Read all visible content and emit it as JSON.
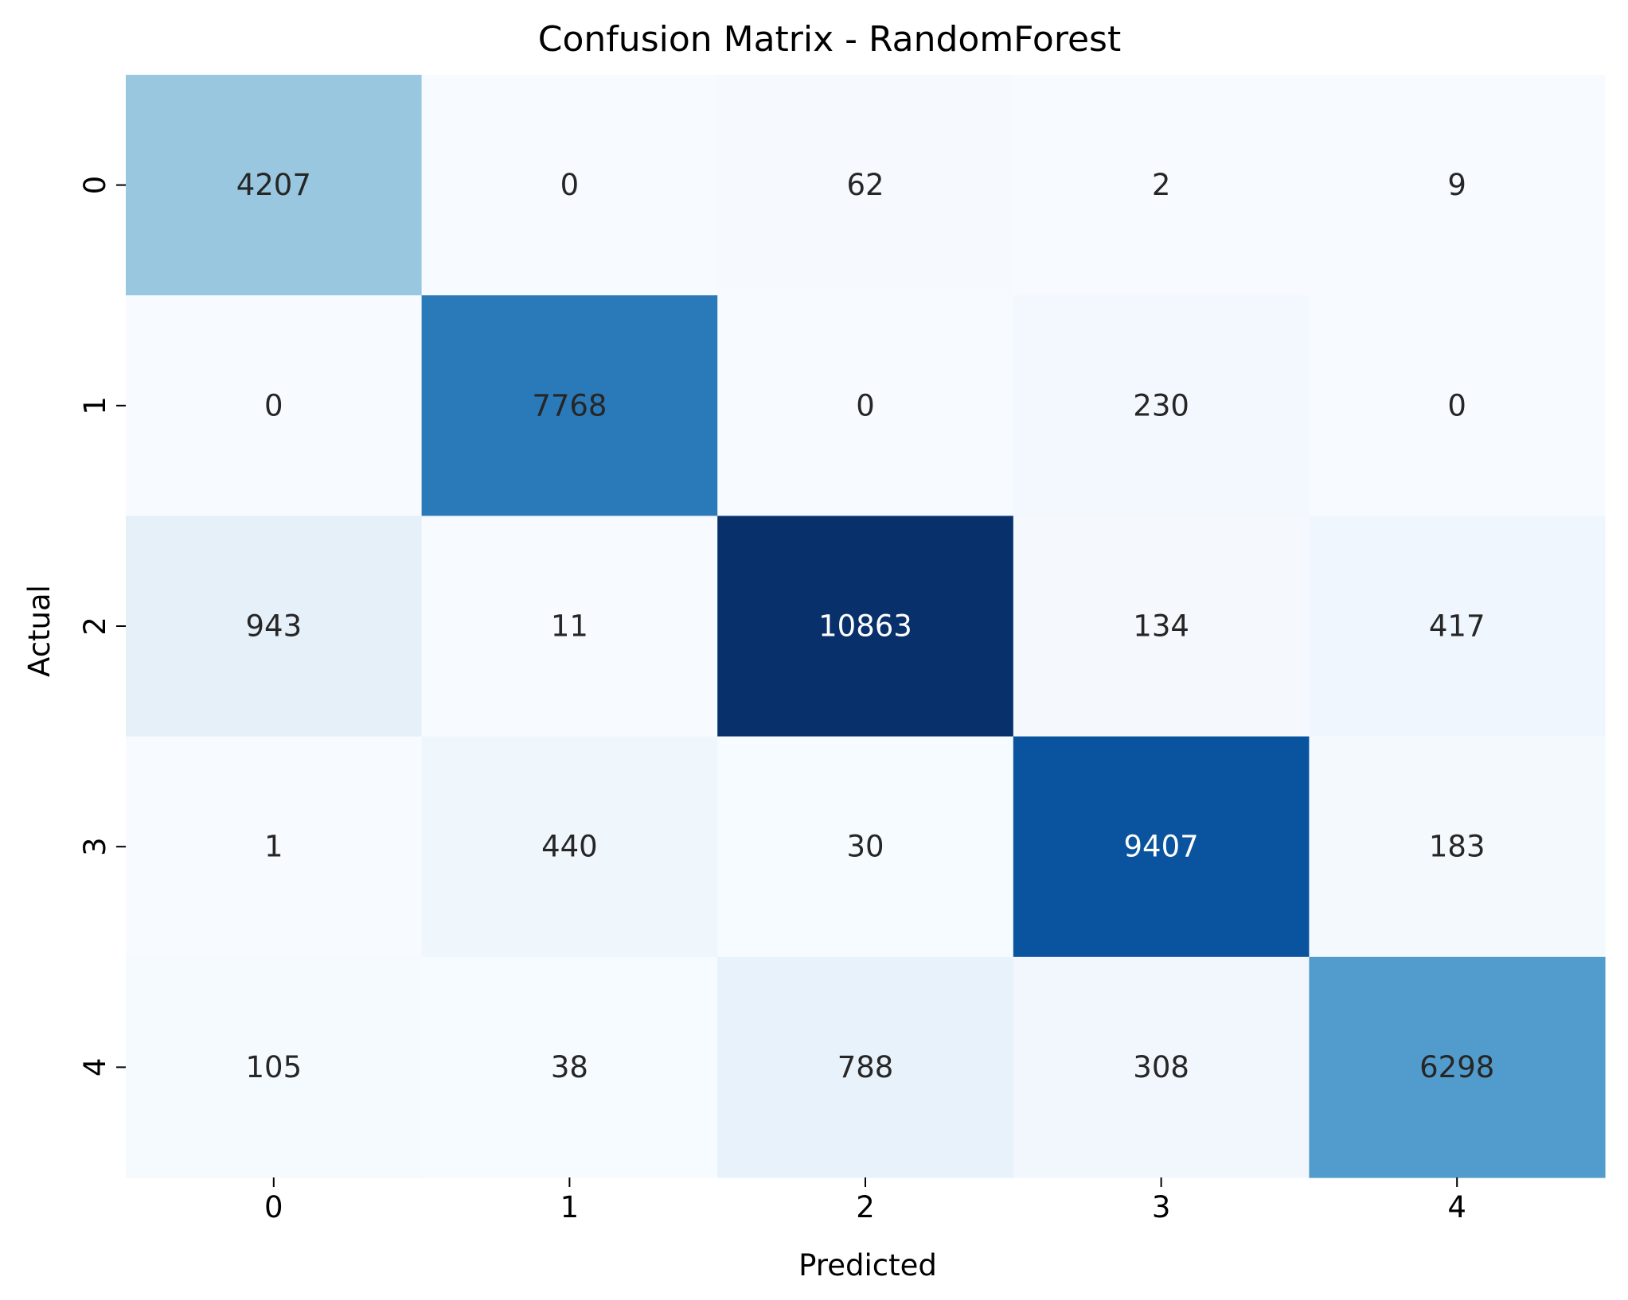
{
  "chart_data": {
    "type": "heatmap",
    "title": "Confusion Matrix - RandomForest",
    "xlabel": "Predicted",
    "ylabel": "Actual",
    "x_categories": [
      "0",
      "1",
      "2",
      "3",
      "4"
    ],
    "y_categories": [
      "0",
      "1",
      "2",
      "3",
      "4"
    ],
    "values": [
      [
        4207,
        0,
        62,
        2,
        9
      ],
      [
        0,
        7768,
        0,
        230,
        0
      ],
      [
        943,
        11,
        10863,
        134,
        417
      ],
      [
        1,
        440,
        30,
        9407,
        183
      ],
      [
        105,
        38,
        788,
        308,
        6298
      ]
    ],
    "colormap": "Blues",
    "colorbar": false,
    "annotated": true,
    "colors": {
      "low": "#f7fbff",
      "high": "#08306b",
      "text_dark": "#262626",
      "text_light": "#ffffff"
    }
  }
}
